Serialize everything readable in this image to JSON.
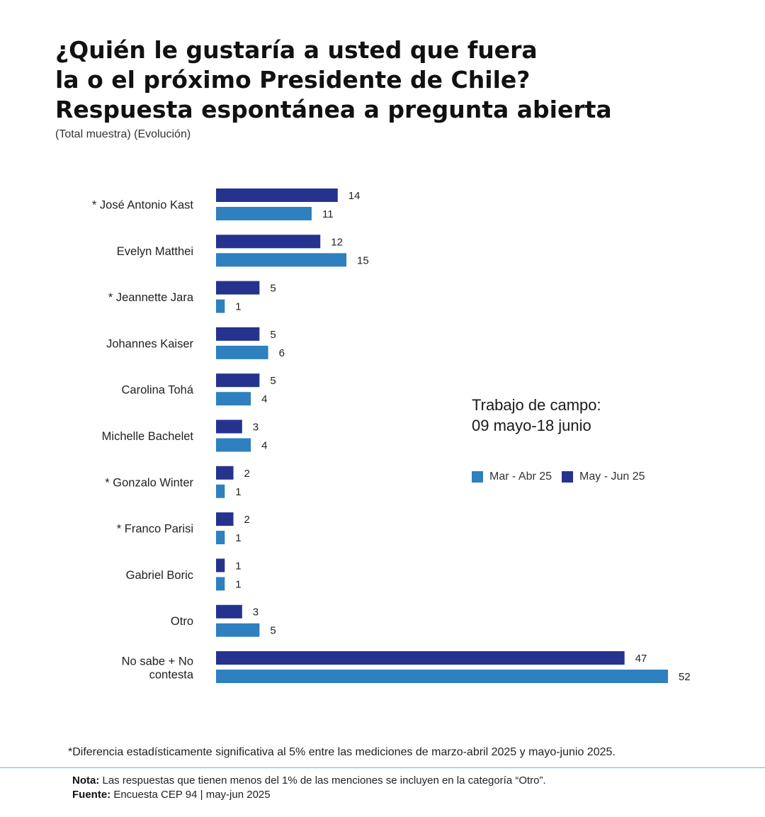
{
  "title": {
    "line1": "¿Quién le gustaría a usted que fuera",
    "line2": "la o el próximo Presidente de Chile?",
    "line3": "Respuesta espontánea a pregunta abierta"
  },
  "subtitle": "(Total muestra) (Evolución)",
  "fieldwork": {
    "line1": "Trabajo de campo:",
    "line2": "09 mayo-18 junio"
  },
  "legend": {
    "mar_abr": "Mar - Abr 25",
    "may_jun": "May - Jun 25"
  },
  "colors": {
    "may_jun": "#25338f",
    "mar_abr": "#2e80bf"
  },
  "chart_data": {
    "type": "bar",
    "orientation": "horizontal",
    "title": "¿Quién le gustaría a usted que fuera la o el próximo Presidente de Chile? Respuesta espontánea a pregunta abierta",
    "categories": [
      "* José Antonio Kast",
      "Evelyn Matthei",
      "* Jeannette Jara",
      "Johannes Kaiser",
      "Carolina Tohá",
      "Michelle Bachelet",
      "* Gonzalo Winter",
      "* Franco Parisi",
      "Gabriel Boric",
      "Otro",
      "No sabe + No contesta"
    ],
    "series": [
      {
        "name": "May - Jun 25",
        "values": [
          14,
          12,
          5,
          5,
          5,
          3,
          2,
          2,
          1,
          3,
          47
        ]
      },
      {
        "name": "Mar - Abr 25",
        "values": [
          11,
          15,
          1,
          6,
          4,
          4,
          1,
          1,
          1,
          5,
          52
        ]
      }
    ],
    "data_labels": true,
    "grid": false,
    "legend_position": "right"
  },
  "footnote": "*Diferencia estadísticamente significativa al 5% entre las mediciones de marzo-abril 2025 y mayo-junio 2025.",
  "notes": {
    "nota_label": "Nota:",
    "nota_text": " Las respuestas que tienen menos del 1% de las menciones se incluyen en la categoría “Otro”.",
    "fuente_label": "Fuente:",
    "fuente_text": " Encuesta CEP 94 | may-jun 2025"
  }
}
